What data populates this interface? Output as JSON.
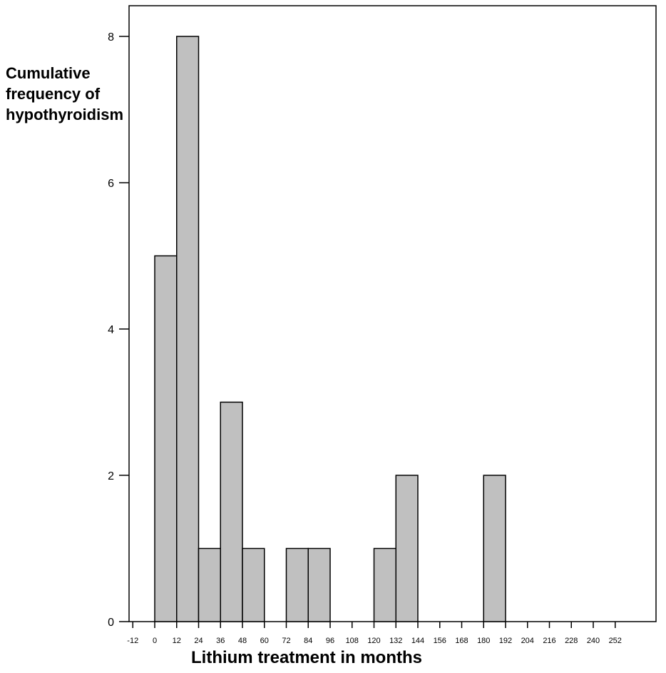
{
  "chart_data": {
    "type": "bar",
    "title": "",
    "ylabel_lines": [
      "Cumulative",
      "frequency of",
      "hypothyroidism"
    ],
    "xlabel": "Lithium treatment in months",
    "bin_width": 12,
    "bins": [
      {
        "start": 0,
        "end": 12,
        "value": 5
      },
      {
        "start": 12,
        "end": 24,
        "value": 8
      },
      {
        "start": 24,
        "end": 36,
        "value": 1
      },
      {
        "start": 36,
        "end": 48,
        "value": 3
      },
      {
        "start": 48,
        "end": 60,
        "value": 1
      },
      {
        "start": 72,
        "end": 84,
        "value": 1
      },
      {
        "start": 84,
        "end": 96,
        "value": 1
      },
      {
        "start": 120,
        "end": 132,
        "value": 1
      },
      {
        "start": 132,
        "end": 144,
        "value": 2
      },
      {
        "start": 180,
        "end": 192,
        "value": 2
      }
    ],
    "xlim": [
      -12,
      252
    ],
    "ylim": [
      0,
      8
    ],
    "x_ticks": [
      "-12",
      "0",
      "12",
      "24",
      "36",
      "48",
      "60",
      "72",
      "84",
      "96",
      "108",
      "120",
      "132",
      "144",
      "156",
      "168",
      "180",
      "192",
      "204",
      "216",
      "228",
      "240",
      "252"
    ],
    "y_ticks": [
      "0",
      "2",
      "4",
      "6",
      "8"
    ],
    "grid": false,
    "colors": {
      "bar_fill": "#c0c0c0",
      "bar_stroke": "#000000",
      "axis": "#000000"
    }
  }
}
